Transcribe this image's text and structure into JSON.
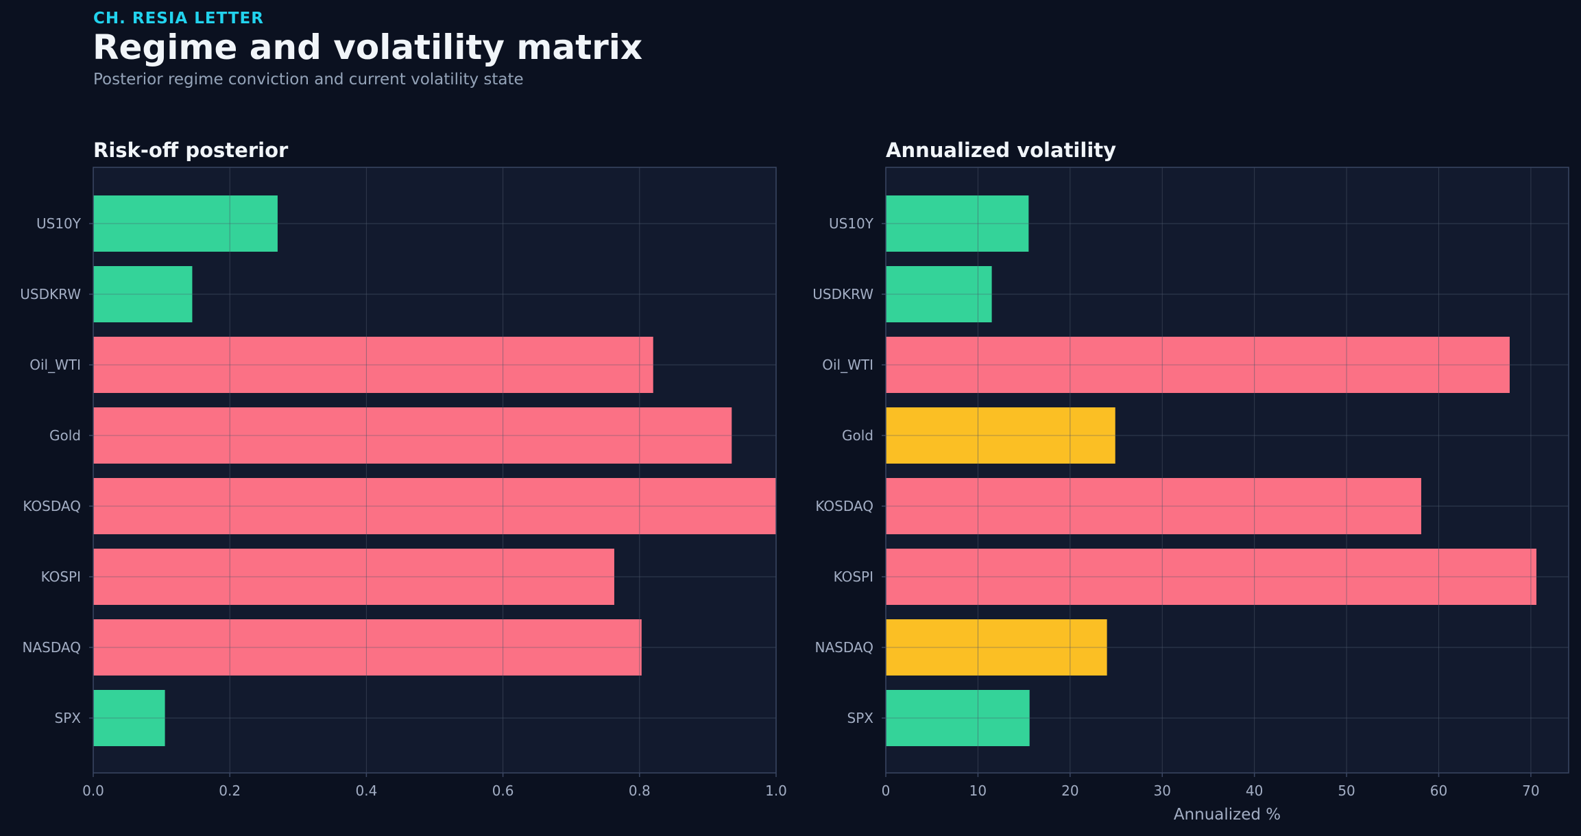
{
  "header": {
    "eyebrow": "CH. RESIA LETTER",
    "title": "Regime and volatility matrix",
    "subtitle": "Posterior regime conviction and current volatility state"
  },
  "colors": {
    "background": "#0b1120",
    "panel": "#121a2e",
    "green": "#34d399",
    "red": "#fb7185",
    "amber": "#fbbf24",
    "grid": "#2a3550",
    "frame": "#3b4763"
  },
  "chart_data": [
    {
      "type": "bar",
      "orientation": "horizontal",
      "title": "Risk-off posterior",
      "xlabel": "",
      "ylabel": "",
      "categories": [
        "US10Y",
        "USDKRW",
        "Oil_WTI",
        "Gold",
        "KOSDAQ",
        "KOSPI",
        "NASDAQ",
        "SPX"
      ],
      "values": [
        0.27,
        0.145,
        0.82,
        0.935,
        1.0,
        0.763,
        0.803,
        0.105
      ],
      "bar_colors": [
        "green",
        "green",
        "red",
        "red",
        "red",
        "red",
        "red",
        "green"
      ],
      "xlim": [
        0,
        1.0
      ],
      "xticks": [
        "0.0",
        "0.2",
        "0.4",
        "0.6",
        "0.8",
        "1.0"
      ],
      "xtick_values": [
        0,
        0.2,
        0.4,
        0.6,
        0.8,
        1.0
      ],
      "grid": true
    },
    {
      "type": "bar",
      "orientation": "horizontal",
      "title": "Annualized volatility",
      "xlabel": "Annualized %",
      "ylabel": "",
      "categories": [
        "US10Y",
        "USDKRW",
        "Oil_WTI",
        "Gold",
        "KOSDAQ",
        "KOSPI",
        "NASDAQ",
        "SPX"
      ],
      "values": [
        15.5,
        11.5,
        67.7,
        24.9,
        58.1,
        70.6,
        24.0,
        15.6
      ],
      "bar_colors": [
        "green",
        "green",
        "red",
        "amber",
        "red",
        "red",
        "amber",
        "green"
      ],
      "xlim": [
        0,
        74.1
      ],
      "xticks": [
        "0",
        "10",
        "20",
        "30",
        "40",
        "50",
        "60",
        "70"
      ],
      "xtick_values": [
        0,
        10,
        20,
        30,
        40,
        50,
        60,
        70
      ],
      "grid": true
    }
  ]
}
